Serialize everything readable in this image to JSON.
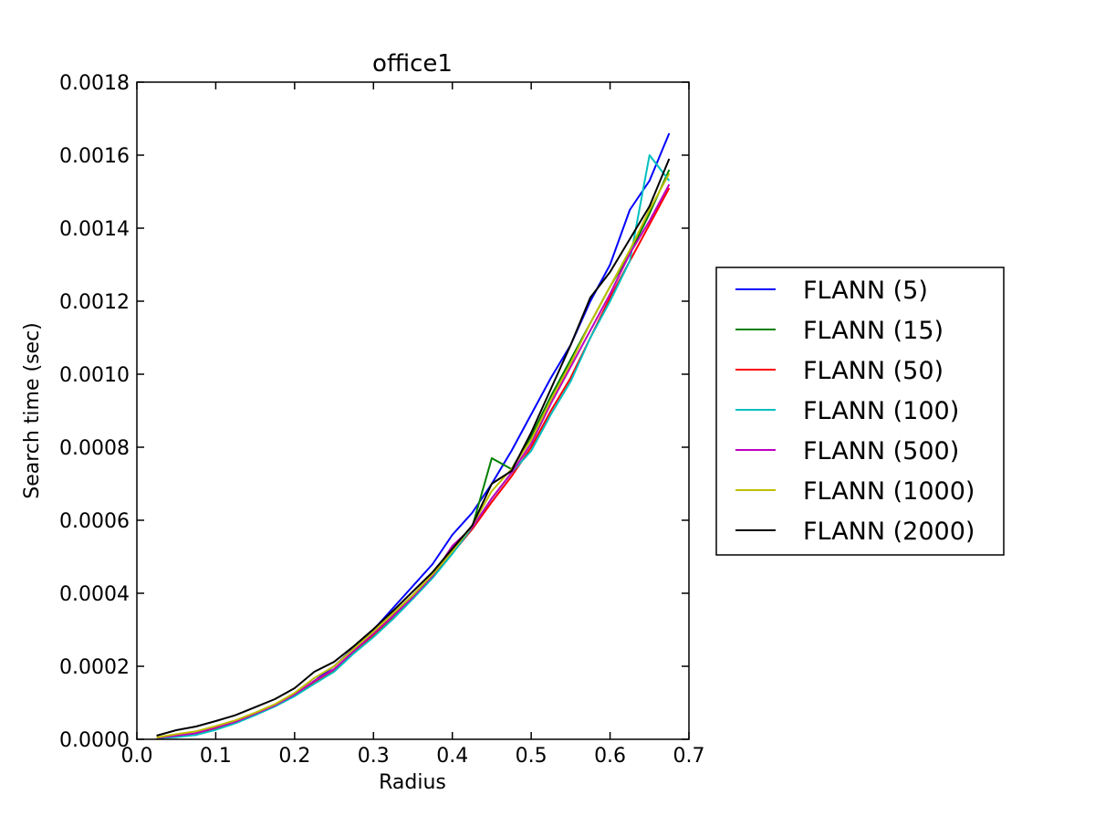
{
  "chart_data": {
    "type": "line",
    "title": "office1",
    "xlabel": "Radius",
    "ylabel": "Search time (sec)",
    "xlim": [
      0.0,
      0.7
    ],
    "ylim": [
      0.0,
      0.0018
    ],
    "x_ticks": [
      0.0,
      0.1,
      0.2,
      0.3,
      0.4,
      0.5,
      0.6,
      0.7
    ],
    "x_tick_labels": [
      "0.0",
      "0.1",
      "0.2",
      "0.3",
      "0.4",
      "0.5",
      "0.6",
      "0.7"
    ],
    "y_ticks": [
      0.0,
      0.0002,
      0.0004,
      0.0006,
      0.0008,
      0.001,
      0.0012,
      0.0014,
      0.0016,
      0.0018
    ],
    "y_tick_labels": [
      "0.0000",
      "0.0002",
      "0.0004",
      "0.0006",
      "0.0008",
      "0.0010",
      "0.0012",
      "0.0014",
      "0.0016",
      "0.0018"
    ],
    "grid": false,
    "legend_position": "right, outside plot area",
    "x": [
      0.025,
      0.05,
      0.075,
      0.1,
      0.125,
      0.15,
      0.175,
      0.2,
      0.225,
      0.25,
      0.275,
      0.3,
      0.325,
      0.35,
      0.375,
      0.4,
      0.425,
      0.45,
      0.475,
      0.5,
      0.525,
      0.55,
      0.575,
      0.6,
      0.625,
      0.65,
      0.675
    ],
    "series": [
      {
        "name": "FLANN (5)",
        "color": "#0000ff",
        "values": [
          3e-06,
          8e-06,
          1.2e-05,
          2.8e-05,
          4.5e-05,
          6.8e-05,
          9.2e-05,
          0.000122,
          0.00016,
          0.0002,
          0.00025,
          0.0003,
          0.00036,
          0.00042,
          0.00048,
          0.00056,
          0.00062,
          0.0007,
          0.00079,
          0.00089,
          0.00099,
          0.00108,
          0.0012,
          0.0013,
          0.00145,
          0.00153,
          0.00166
        ]
      },
      {
        "name": "FLANN (15)",
        "color": "#008000",
        "values": [
          3e-06,
          8e-06,
          1.4e-05,
          2.9e-05,
          4.5e-05,
          6.8e-05,
          9e-05,
          0.00012,
          0.000158,
          0.000188,
          0.00024,
          0.000288,
          0.000338,
          0.000392,
          0.000448,
          0.000515,
          0.00058,
          0.00077,
          0.00074,
          0.00083,
          0.00094,
          0.00104,
          0.00114,
          0.00124,
          0.00133,
          0.00144,
          0.00156
        ]
      },
      {
        "name": "FLANN (50)",
        "color": "#ff0000",
        "values": [
          3e-06,
          8e-06,
          1.5e-05,
          3e-05,
          4.6e-05,
          7e-05,
          9.2e-05,
          0.000122,
          0.000158,
          0.00019,
          0.00024,
          0.000285,
          0.000335,
          0.000388,
          0.000445,
          0.00051,
          0.000575,
          0.00065,
          0.00072,
          0.0008,
          0.0009,
          0.00099,
          0.0011,
          0.00121,
          0.00131,
          0.00141,
          0.00151
        ]
      },
      {
        "name": "FLANN (100)",
        "color": "#00bfbf",
        "values": [
          3e-06,
          6e-06,
          1.2e-05,
          2.6e-05,
          4.4e-05,
          6.6e-05,
          9e-05,
          0.000118,
          0.000152,
          0.000185,
          0.000235,
          0.00028,
          0.00033,
          0.000385,
          0.000442,
          0.000508,
          0.00058,
          0.00066,
          0.00073,
          0.00079,
          0.00089,
          0.00098,
          0.0011,
          0.0012,
          0.00131,
          0.0016,
          0.00153
        ]
      },
      {
        "name": "FLANN (500)",
        "color": "#bf00bf",
        "values": [
          4e-06,
          1e-05,
          1.7e-05,
          3.2e-05,
          4.8e-05,
          7e-05,
          9.3e-05,
          0.000123,
          0.00016,
          0.000192,
          0.000242,
          0.00029,
          0.000338,
          0.00039,
          0.000448,
          0.00053,
          0.00058,
          0.00066,
          0.00073,
          0.00081,
          0.00092,
          0.00102,
          0.00112,
          0.00122,
          0.00133,
          0.00142,
          0.00152
        ]
      },
      {
        "name": "FLANN (1000)",
        "color": "#bfbf00",
        "values": [
          5e-06,
          1.4e-05,
          2.2e-05,
          3.6e-05,
          5.2e-05,
          7.3e-05,
          9.6e-05,
          0.000127,
          0.000168,
          0.0002,
          0.000248,
          0.000295,
          0.000345,
          0.000395,
          0.000452,
          0.000515,
          0.000585,
          0.00068,
          0.00074,
          0.00082,
          0.00093,
          0.00103,
          0.00114,
          0.00124,
          0.00134,
          0.00145,
          0.00155
        ]
      },
      {
        "name": "FLANN (2000)",
        "color": "#000000",
        "values": [
          1e-05,
          2.5e-05,
          3.5e-05,
          5e-05,
          6.6e-05,
          8.8e-05,
          0.00011,
          0.00014,
          0.000185,
          0.000212,
          0.000255,
          0.000302,
          0.000352,
          0.000405,
          0.000458,
          0.000522,
          0.000585,
          0.0007,
          0.000735,
          0.00084,
          0.00096,
          0.00108,
          0.00121,
          0.00128,
          0.00137,
          0.00146,
          0.00159
        ]
      }
    ]
  }
}
